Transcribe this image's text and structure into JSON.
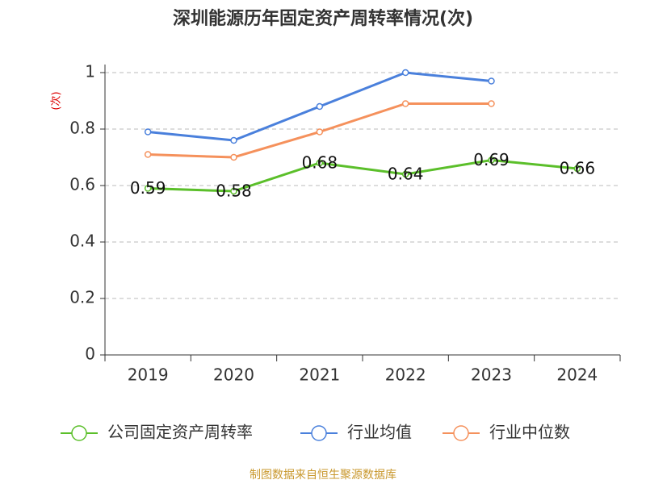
{
  "chart_data": {
    "type": "line",
    "title": "深圳能源历年固定资产周转率情况(次)",
    "y_label": "(次)",
    "source": "制图数据来自恒生聚源数据库",
    "categories": [
      "2019",
      "2020",
      "2021",
      "2022",
      "2023",
      "2024"
    ],
    "series": [
      {
        "name": "公司固定资产周转率",
        "color": "#5bbf2a",
        "values": [
          0.59,
          0.58,
          0.68,
          0.64,
          0.69,
          0.66
        ]
      },
      {
        "name": "行业均值",
        "color": "#4a80dc",
        "values": [
          0.79,
          0.76,
          0.88,
          1.0,
          0.97,
          null
        ]
      },
      {
        "name": "行业中位数",
        "color": "#f5915c",
        "values": [
          0.71,
          0.7,
          0.79,
          0.89,
          0.89,
          null
        ]
      }
    ],
    "ylim": [
      0,
      1
    ],
    "yticks": [
      0,
      0.2,
      0.4,
      0.6,
      0.8,
      1
    ],
    "grid": true
  }
}
